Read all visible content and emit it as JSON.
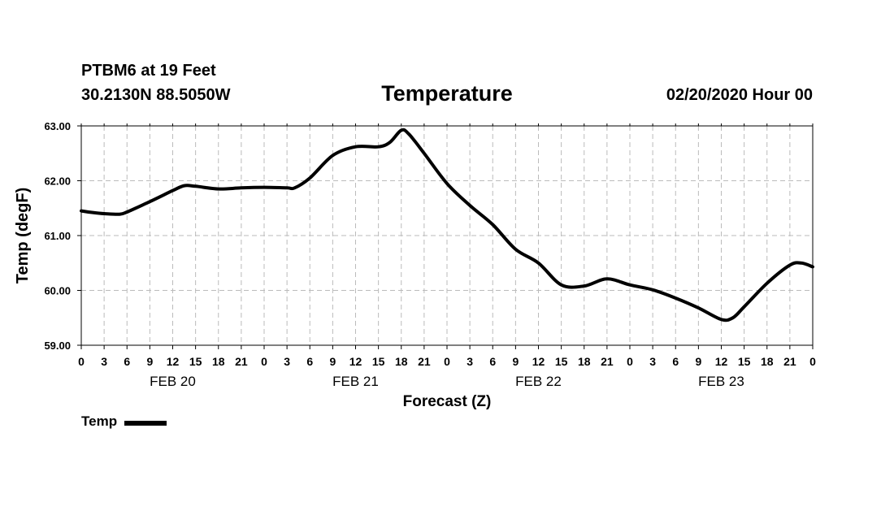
{
  "header": {
    "station": "PTBM6 at 19 Feet",
    "coords": "30.2130N 88.5050W",
    "title": "Temperature",
    "datetime": "02/20/2020 Hour 00"
  },
  "legend": {
    "label": "Temp"
  },
  "colors": {
    "line": "#000000",
    "grid": "#bbbbbb"
  },
  "chart_data": {
    "type": "line",
    "title": "Temperature",
    "xlabel": "Forecast (Z)",
    "ylabel": "Temp (degF)",
    "xlim": [
      0,
      96
    ],
    "ylim": [
      59,
      63
    ],
    "grid": true,
    "legend_placement": "bottom-left",
    "yticks": [
      {
        "value": 59,
        "label": "59.00"
      },
      {
        "value": 60,
        "label": "60.00"
      },
      {
        "value": 61,
        "label": "61.00"
      },
      {
        "value": 62,
        "label": "62.00"
      },
      {
        "value": 63,
        "label": "63.00"
      }
    ],
    "xticks": [
      {
        "hour": 0,
        "label": "0"
      },
      {
        "hour": 3,
        "label": "3"
      },
      {
        "hour": 6,
        "label": "6"
      },
      {
        "hour": 9,
        "label": "9"
      },
      {
        "hour": 12,
        "label": "12"
      },
      {
        "hour": 15,
        "label": "15"
      },
      {
        "hour": 18,
        "label": "18"
      },
      {
        "hour": 21,
        "label": "21"
      },
      {
        "hour": 24,
        "label": "0"
      },
      {
        "hour": 27,
        "label": "3"
      },
      {
        "hour": 30,
        "label": "6"
      },
      {
        "hour": 33,
        "label": "9"
      },
      {
        "hour": 36,
        "label": "12"
      },
      {
        "hour": 39,
        "label": "15"
      },
      {
        "hour": 42,
        "label": "18"
      },
      {
        "hour": 45,
        "label": "21"
      },
      {
        "hour": 48,
        "label": "0"
      },
      {
        "hour": 51,
        "label": "3"
      },
      {
        "hour": 54,
        "label": "6"
      },
      {
        "hour": 57,
        "label": "9"
      },
      {
        "hour": 60,
        "label": "12"
      },
      {
        "hour": 63,
        "label": "15"
      },
      {
        "hour": 66,
        "label": "18"
      },
      {
        "hour": 69,
        "label": "21"
      },
      {
        "hour": 72,
        "label": "0"
      },
      {
        "hour": 75,
        "label": "3"
      },
      {
        "hour": 78,
        "label": "6"
      },
      {
        "hour": 81,
        "label": "9"
      },
      {
        "hour": 84,
        "label": "12"
      },
      {
        "hour": 87,
        "label": "15"
      },
      {
        "hour": 90,
        "label": "18"
      },
      {
        "hour": 93,
        "label": "21"
      },
      {
        "hour": 96,
        "label": "0"
      }
    ],
    "day_labels": [
      {
        "hour": 12,
        "label": "FEB 20"
      },
      {
        "hour": 36,
        "label": "FEB 21"
      },
      {
        "hour": 60,
        "label": "FEB 22"
      },
      {
        "hour": 84,
        "label": "FEB 23"
      }
    ],
    "series": [
      {
        "name": "Temp",
        "points": [
          [
            0,
            61.45
          ],
          [
            1.5,
            61.42
          ],
          [
            3,
            61.4
          ],
          [
            5,
            61.39
          ],
          [
            6,
            61.43
          ],
          [
            9,
            61.62
          ],
          [
            12,
            61.82
          ],
          [
            13.5,
            61.91
          ],
          [
            15,
            61.9
          ],
          [
            18,
            61.85
          ],
          [
            21,
            61.87
          ],
          [
            24,
            61.88
          ],
          [
            27,
            61.87
          ],
          [
            28,
            61.87
          ],
          [
            30,
            62.05
          ],
          [
            33,
            62.46
          ],
          [
            36,
            62.62
          ],
          [
            39,
            62.62
          ],
          [
            40.5,
            62.7
          ],
          [
            42,
            62.92
          ],
          [
            43,
            62.85
          ],
          [
            45,
            62.5
          ],
          [
            48,
            61.95
          ],
          [
            51,
            61.55
          ],
          [
            54,
            61.2
          ],
          [
            57,
            60.75
          ],
          [
            60,
            60.5
          ],
          [
            63,
            60.1
          ],
          [
            66,
            60.08
          ],
          [
            69,
            60.21
          ],
          [
            72,
            60.1
          ],
          [
            75,
            60.01
          ],
          [
            78,
            59.86
          ],
          [
            81,
            59.68
          ],
          [
            84,
            59.47
          ],
          [
            85.5,
            59.5
          ],
          [
            87,
            59.7
          ],
          [
            90,
            60.13
          ],
          [
            93,
            60.46
          ],
          [
            94.5,
            60.5
          ],
          [
            96,
            60.43
          ]
        ]
      }
    ]
  }
}
